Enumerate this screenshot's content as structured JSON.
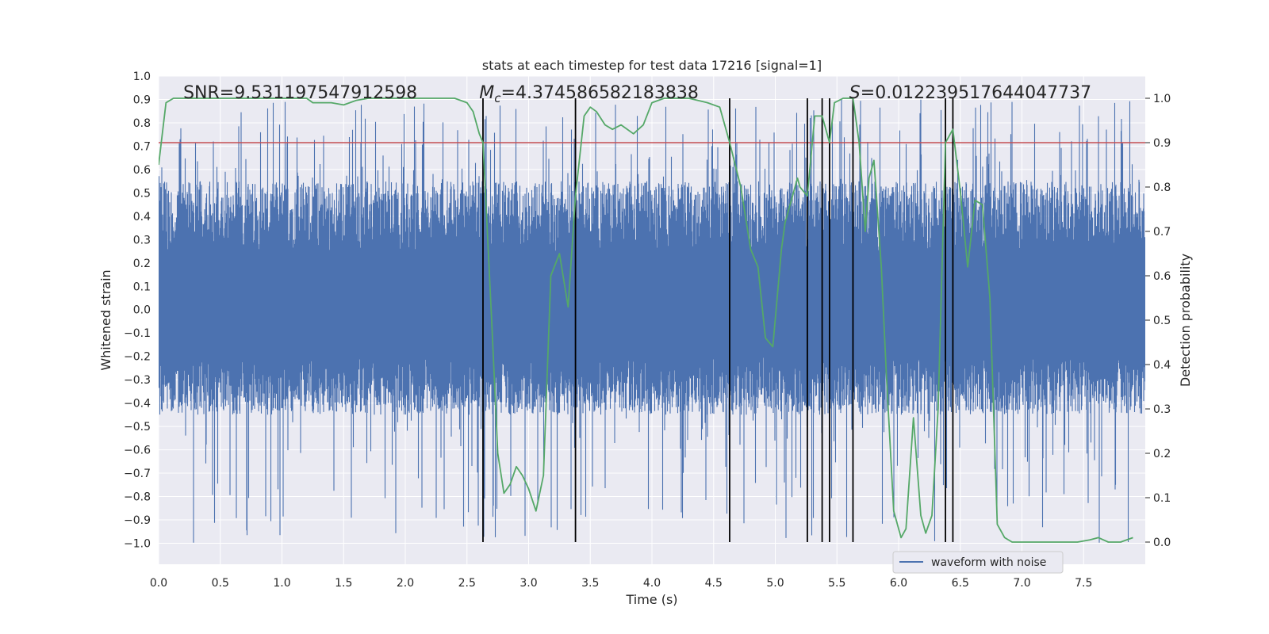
{
  "chart_data": {
    "type": "line",
    "title": "stats at each timestep for test data 17216 [signal=1]",
    "xlabel": "Time (s)",
    "ylabel": "Whitened strain",
    "y2label": "Detection probability",
    "xlim": [
      0.0,
      8.0
    ],
    "ylim": [
      -1.09,
      1.0
    ],
    "y2lim": [
      -0.05,
      1.05
    ],
    "xticks": [
      0.0,
      0.5,
      1.0,
      1.5,
      2.0,
      2.5,
      3.0,
      3.5,
      4.0,
      4.5,
      5.0,
      5.5,
      6.0,
      6.5,
      7.0,
      7.5
    ],
    "xtick_labels": [
      "0.0",
      "0.5",
      "1.0",
      "1.5",
      "2.0",
      "2.5",
      "3.0",
      "3.5",
      "4.0",
      "4.5",
      "5.0",
      "5.5",
      "6.0",
      "6.5",
      "7.0",
      "7.5"
    ],
    "yticks": [
      -1.0,
      -0.9,
      -0.8,
      -0.7,
      -0.6,
      -0.5,
      -0.4,
      -0.3,
      -0.2,
      -0.1,
      0.0,
      0.1,
      0.2,
      0.3,
      0.4,
      0.5,
      0.6,
      0.7,
      0.8,
      0.9,
      1.0
    ],
    "ytick_labels": [
      "−1.0",
      "−0.9",
      "−0.8",
      "−0.7",
      "−0.6",
      "−0.5",
      "−0.4",
      "−0.3",
      "−0.2",
      "−0.1",
      "0.0",
      "0.1",
      "0.2",
      "0.3",
      "0.4",
      "0.5",
      "0.6",
      "0.7",
      "0.8",
      "0.9",
      "1.0"
    ],
    "y2ticks": [
      0.0,
      0.1,
      0.2,
      0.3,
      0.4,
      0.5,
      0.6,
      0.7,
      0.8,
      0.9,
      1.0
    ],
    "y2tick_labels": [
      "0.0",
      "0.1",
      "0.2",
      "0.3",
      "0.4",
      "0.5",
      "0.6",
      "0.7",
      "0.8",
      "0.9",
      "1.0"
    ],
    "grid": true,
    "legend": {
      "placement": "lower-right",
      "entries": [
        "waveform with noise"
      ]
    },
    "annotations": {
      "snr": {
        "prefix": "SNR=",
        "value": "9.531197547912598",
        "x": 0.2
      },
      "chirp_mass": {
        "symbol": "M",
        "subscript": "c",
        "value": "=4.374586582183838",
        "x": 2.6
      },
      "spin": {
        "symbol": "S",
        "value": "=0.012239517644047737",
        "x": 5.6
      }
    },
    "threshold": {
      "value": 0.9,
      "axis": "y2"
    },
    "vlines": [
      2.63,
      3.38,
      4.63,
      5.26,
      5.38,
      5.44,
      5.63,
      6.38,
      6.44
    ],
    "vline_range": [
      0.0,
      1.0
    ],
    "probability": {
      "x": [
        0.0,
        0.06,
        0.12,
        0.2,
        0.5,
        1.0,
        1.2,
        1.25,
        1.35,
        1.4,
        1.5,
        1.6,
        1.7,
        2.0,
        2.4,
        2.5,
        2.55,
        2.6,
        2.63,
        2.7,
        2.75,
        2.8,
        2.85,
        2.9,
        2.95,
        3.0,
        3.06,
        3.12,
        3.18,
        3.25,
        3.32,
        3.38,
        3.45,
        3.5,
        3.55,
        3.62,
        3.68,
        3.75,
        3.85,
        3.93,
        4.0,
        4.1,
        4.3,
        4.45,
        4.55,
        4.63,
        4.72,
        4.8,
        4.86,
        4.92,
        4.98,
        5.05,
        5.08,
        5.18,
        5.2,
        5.26,
        5.32,
        5.38,
        5.44,
        5.48,
        5.55,
        5.63,
        5.68,
        5.73,
        5.76,
        5.8,
        5.86,
        5.9,
        5.96,
        6.02,
        6.06,
        6.12,
        6.18,
        6.22,
        6.27,
        6.32,
        6.38,
        6.44,
        6.5,
        6.56,
        6.62,
        6.68,
        6.74,
        6.8,
        6.86,
        6.92,
        7.0,
        7.3,
        7.45,
        7.55,
        7.62,
        7.7,
        7.8,
        7.9
      ],
      "y": [
        0.85,
        0.99,
        1.0,
        1.0,
        1.0,
        1.0,
        1.0,
        0.99,
        0.99,
        0.99,
        0.985,
        0.995,
        1.0,
        1.0,
        1.0,
        0.99,
        0.97,
        0.92,
        0.9,
        0.5,
        0.2,
        0.11,
        0.13,
        0.17,
        0.15,
        0.12,
        0.07,
        0.15,
        0.6,
        0.65,
        0.53,
        0.78,
        0.96,
        0.98,
        0.97,
        0.94,
        0.93,
        0.94,
        0.92,
        0.94,
        0.99,
        1.0,
        1.0,
        0.99,
        0.98,
        0.9,
        0.8,
        0.66,
        0.62,
        0.46,
        0.44,
        0.66,
        0.72,
        0.82,
        0.8,
        0.78,
        0.96,
        0.96,
        0.9,
        0.99,
        1.0,
        1.0,
        0.9,
        0.7,
        0.82,
        0.86,
        0.62,
        0.38,
        0.07,
        0.01,
        0.03,
        0.28,
        0.06,
        0.02,
        0.06,
        0.3,
        0.9,
        0.93,
        0.79,
        0.62,
        0.77,
        0.76,
        0.55,
        0.04,
        0.01,
        0.0,
        0.0,
        0.0,
        0.0,
        0.005,
        0.01,
        0.0,
        0.0,
        0.01
      ]
    },
    "series": [
      {
        "name": "waveform with noise",
        "color": "#4c72b0",
        "axis": "y",
        "sampling": "dense",
        "typical_range": [
          -0.45,
          0.55
        ],
        "peak_range": [
          -1.0,
          0.9
        ]
      },
      {
        "color": "#55a868",
        "axis": "y2",
        "source": "probability"
      }
    ],
    "colors": {
      "background": "#eaeaf2",
      "grid": "#ffffff",
      "waveform": "#4c72b0",
      "probability": "#55a868",
      "threshold": "#c44e52",
      "vline": "#000000"
    }
  }
}
